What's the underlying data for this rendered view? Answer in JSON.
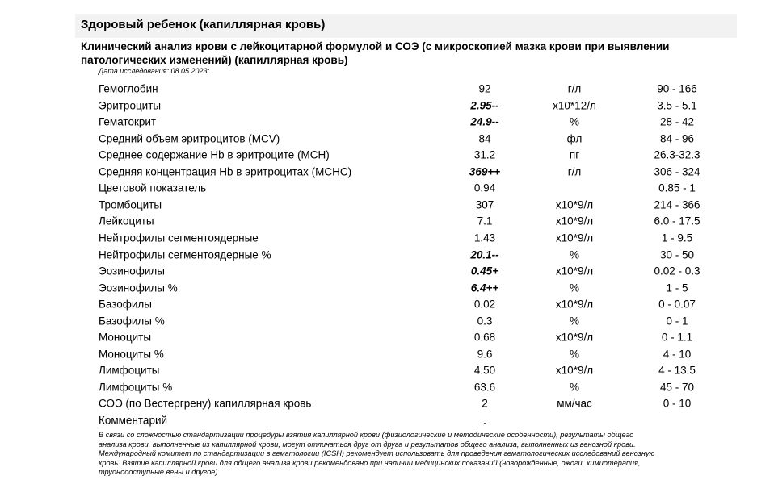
{
  "header": {
    "title": "Здоровый ребенок (капиллярная кровь)",
    "subtitle": "Клинический анализ крови с лейкоцитарной формулой и СОЭ (с микроскопией мазка крови при выявлении патологических изменений) (капиллярная кровь)",
    "date": "Дата исследования: 08.05.2023;"
  },
  "table": {
    "rows": [
      {
        "name": "Гемоглобин",
        "value": "92",
        "unit": "г/л",
        "range": "90 - 166",
        "flag": false
      },
      {
        "name": "Эритроциты",
        "value": "2.95--",
        "unit": "x10*12/л",
        "range": "3.5 - 5.1",
        "flag": true
      },
      {
        "name": "Гематокрит",
        "value": "24.9--",
        "unit": "%",
        "range": "28 - 42",
        "flag": true
      },
      {
        "name": "Средний объем эритроцитов (MCV)",
        "value": "84",
        "unit": "фл",
        "range": "84 - 96",
        "flag": false
      },
      {
        "name": "Среднее содержание Hb в эритроците (MCH)",
        "value": "31.2",
        "unit": "пг",
        "range": "26.3-32.3",
        "flag": false
      },
      {
        "name": "Средняя концентрация Hb в эритроцитах (MCHC)",
        "value": "369++",
        "unit": "г/л",
        "range": "306 - 324",
        "flag": true
      },
      {
        "name": "Цветовой показатель",
        "value": "0.94",
        "unit": null,
        "range": "0.85 - 1",
        "flag": false
      },
      {
        "name": "Тромбоциты",
        "value": "307",
        "unit": "x10*9/л",
        "range": "214 - 366",
        "flag": false
      },
      {
        "name": "Лейкоциты",
        "value": "7.1",
        "unit": "x10*9/л",
        "range": "6.0 - 17.5",
        "flag": false
      },
      {
        "name": "Нейтрофилы сегментоядерные",
        "value": "1.43",
        "unit": "x10*9/л",
        "range": "1 - 9.5",
        "flag": false
      },
      {
        "name": "Нейтрофилы сегментоядерные %",
        "value": "20.1--",
        "unit": "%",
        "range": "30 - 50",
        "flag": true
      },
      {
        "name": "Эозинофилы",
        "value": "0.45+",
        "unit": "x10*9/л",
        "range": "0.02 - 0.3",
        "flag": true
      },
      {
        "name": "Эозинофилы %",
        "value": "6.4++",
        "unit": "%",
        "range": "1 - 5",
        "flag": true
      },
      {
        "name": "Базофилы",
        "value": "0.02",
        "unit": "x10*9/л",
        "range": "0 - 0.07",
        "flag": false
      },
      {
        "name": "Базофилы %",
        "value": "0.3",
        "unit": "%",
        "range": "0 - 1",
        "flag": false
      },
      {
        "name": "Моноциты",
        "value": "0.68",
        "unit": "x10*9/л",
        "range": "0 - 1.1",
        "flag": false
      },
      {
        "name": "Моноциты %",
        "value": "9.6",
        "unit": "%",
        "range": "4 - 10",
        "flag": false
      },
      {
        "name": "Лимфоциты",
        "value": "4.50",
        "unit": "x10*9/л",
        "range": "4 - 13.5",
        "flag": false
      },
      {
        "name": "Лимфоциты %",
        "value": "63.6",
        "unit": "%",
        "range": "45 - 70",
        "flag": false
      },
      {
        "name": "СОЭ (по Вестергрену) капиллярная кровь",
        "value": "2",
        "unit": "мм/час",
        "range": "0 - 10",
        "flag": false
      },
      {
        "name": "Комментарий",
        "value": ".",
        "unit": null,
        "range": null,
        "flag": false
      }
    ]
  },
  "footnote": {
    "lines": [
      "В связи со сложностью стандартизации процедуры взятия капиллярной крови (физиологические и методические особенности), результаты общего",
      "анализа крови, выполненные из капиллярной крови, могут отличаться друг от друга и результатов общего анализа, выполненных из венозной крови.",
      "Международный комитет по стандартизации в гематологии (ICSH) рекомендует использовать для проведения гематологических исследований венозную",
      "кровь. Взятие капиллярной крови для общего анализа крови рекомендовано при наличии медицинских показаний (новорожденные, ожоги, химиотерапия,",
      "труднодоступные вены и другое)."
    ]
  }
}
